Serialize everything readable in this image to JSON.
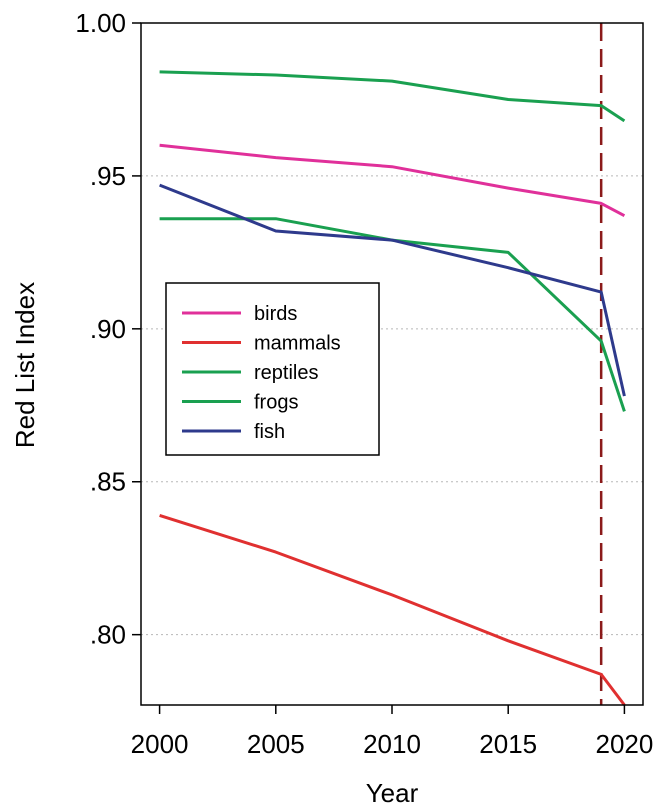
{
  "chart_data": {
    "type": "line",
    "xlabel": "Year",
    "ylabel": "Red List Index",
    "xlim": [
      1999.2,
      2020.8
    ],
    "ylim": [
      0.777,
      1.0
    ],
    "x_ticks": [
      2000,
      2005,
      2010,
      2015,
      2020
    ],
    "x_tick_labels": [
      "2000",
      "2005",
      "2010",
      "2015",
      "2020"
    ],
    "y_ticks": [
      1.0,
      0.95,
      0.9,
      0.85,
      0.8
    ],
    "y_tick_labels": [
      "1.00",
      ".95",
      ".90",
      ".85",
      ".80"
    ],
    "grid": "horizontal dotted",
    "legend_position": "middle-left",
    "reference_line": {
      "x": 2019,
      "color": "#8b1a1a",
      "style": "dashed"
    },
    "series": [
      {
        "name": "birds",
        "color": "#e0309a",
        "x": [
          2000,
          2005,
          2010,
          2015,
          2019,
          2020
        ],
        "y": [
          0.96,
          0.956,
          0.953,
          0.946,
          0.941,
          0.937
        ]
      },
      {
        "name": "mammals",
        "color": "#e03030",
        "x": [
          2000,
          2005,
          2010,
          2015,
          2019,
          2020
        ],
        "y": [
          0.839,
          0.827,
          0.813,
          0.798,
          0.787,
          0.777
        ]
      },
      {
        "name": "reptiles",
        "color": "#1aa050",
        "x": [
          2000,
          2005,
          2010,
          2015,
          2019,
          2020
        ],
        "y": [
          0.984,
          0.983,
          0.981,
          0.975,
          0.973,
          0.968
        ]
      },
      {
        "name": "frogs",
        "color": "#1aa050",
        "x": [
          2000,
          2005,
          2010,
          2015,
          2019,
          2020
        ],
        "y": [
          0.936,
          0.936,
          0.929,
          0.925,
          0.896,
          0.873
        ]
      },
      {
        "name": "fish",
        "color": "#2e3a8c",
        "x": [
          2000,
          2005,
          2010,
          2015,
          2019,
          2020
        ],
        "y": [
          0.947,
          0.932,
          0.929,
          0.92,
          0.912,
          0.878
        ]
      }
    ]
  }
}
